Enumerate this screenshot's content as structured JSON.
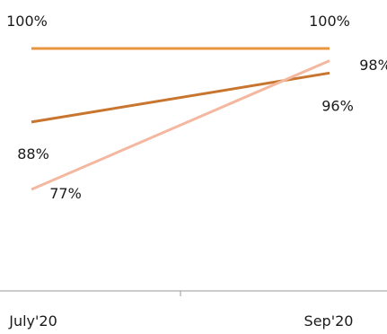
{
  "chart_data": {
    "type": "line",
    "categories": [
      "July'20",
      "Sep'20"
    ],
    "ylim": [
      60,
      105
    ],
    "grid": false,
    "legend": "none",
    "series": [
      {
        "values": [
          100,
          100
        ],
        "color": "#E8953E",
        "labels": [
          "100%",
          "100%"
        ]
      },
      {
        "values": [
          88,
          96
        ],
        "color": "#C8752F",
        "labels": [
          "88%",
          "96%"
        ]
      },
      {
        "values": [
          77,
          98
        ],
        "color": "#F4B8A0",
        "labels": [
          "77%",
          "98%"
        ]
      }
    ]
  }
}
